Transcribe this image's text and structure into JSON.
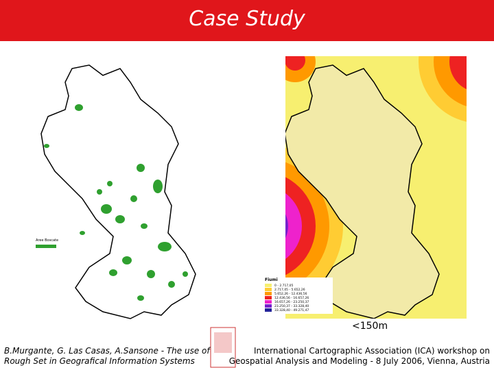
{
  "header": {
    "title": "Case Study"
  },
  "left_map": {
    "legend_label": "Aree Boscate"
  },
  "right_map": {
    "legend_title": "Fiumi",
    "legend_items": [
      "0 - 2.717,05",
      "2.717,05 - 5.652,26",
      "5.652,26 - 12.436,56",
      "12.436,56 - 16.657,26",
      "16.657,26 - 23.250,37",
      "23.250,37 - 33.328,40",
      "33.328,40 - 49.271,47"
    ],
    "annotation": "<150m"
  },
  "footer": {
    "left": [
      "B.Murgante, G. Las Casas, A.Sansone - The use of",
      "Rough Set in Geografical Information Systems"
    ],
    "right": [
      "International Cartographic Association (ICA) workshop  on",
      "Geospatial Analysis and Modeling - 8 July 2006, Vienna, Austria"
    ]
  }
}
